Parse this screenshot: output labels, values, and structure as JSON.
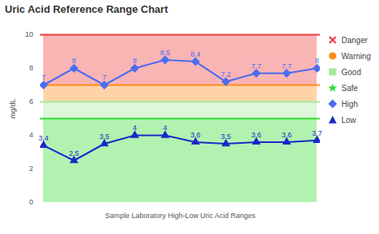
{
  "chart_data": {
    "type": "line",
    "title": "Uric Acid Reference Range Chart",
    "y_label": "mg/dL",
    "x_label": "Sample Laboratory High-Low Uric Acid Ranges",
    "categories": [
      null,
      null,
      null,
      null,
      null,
      null,
      null,
      null,
      null,
      null
    ],
    "series": [
      {
        "name": "High",
        "color": "#4a6cf0",
        "marker": "diamond",
        "values": [
          7,
          8,
          7,
          8,
          8.5,
          8.4,
          7.2,
          7.7,
          7.7,
          8
        ]
      },
      {
        "name": "Low",
        "color": "#1a28c8",
        "marker": "triangle",
        "values": [
          3.4,
          2.5,
          3.5,
          4,
          4,
          3.6,
          3.5,
          3.6,
          3.6,
          3.7
        ]
      }
    ],
    "bands": [
      {
        "name": "Danger",
        "from": 7,
        "to": 10,
        "color": "#ee3b3b",
        "marker": "x"
      },
      {
        "name": "Warning",
        "from": 6,
        "to": 7,
        "color": "#ff8c1a",
        "marker": "hexagon"
      },
      {
        "name": "Good",
        "from": 5,
        "to": 6,
        "color": "#a8e89c",
        "marker": "square"
      },
      {
        "name": "Safe",
        "from": 0,
        "to": 5,
        "color": "#33dd33",
        "marker": "star"
      }
    ],
    "ylim": [
      0,
      10
    ],
    "yticks": [
      0,
      2,
      4,
      6,
      8,
      10
    ],
    "grid": false,
    "data_labels": true,
    "tick_labels": "y",
    "legend": "right"
  }
}
